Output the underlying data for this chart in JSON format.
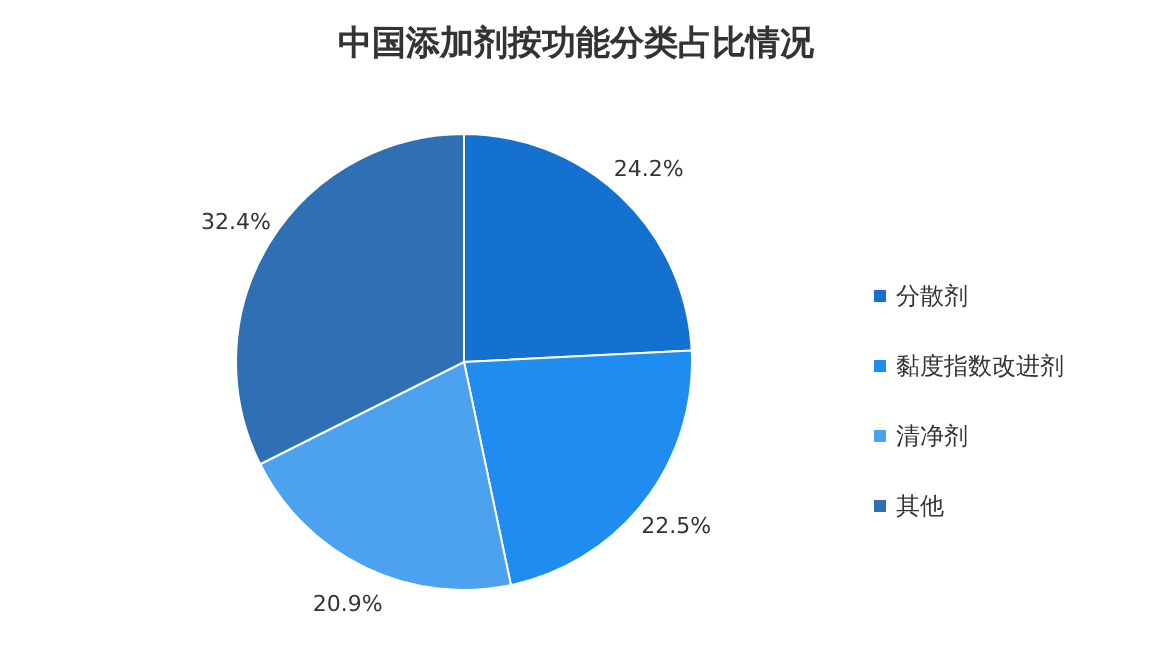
{
  "chart_data": {
    "type": "pie",
    "title": "中国添加剂按功能分类占比情况",
    "categories": [
      "分散剂",
      "黏度指数改进剂",
      "清净剂",
      "其他"
    ],
    "values": [
      24.2,
      22.5,
      20.9,
      32.4
    ],
    "colors": [
      "#1571d0",
      "#1f8cf0",
      "#4ca2ee",
      "#2f6fb3"
    ],
    "value_labels": [
      "24.2%",
      "22.5%",
      "20.9%",
      "32.4%"
    ],
    "legend": "right"
  }
}
